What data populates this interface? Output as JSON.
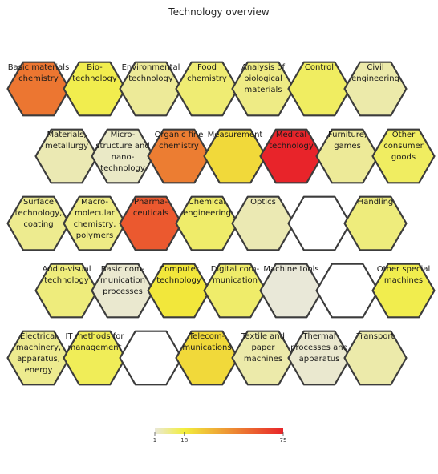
{
  "chart_data": {
    "type": "heatmap",
    "title": "Technology overview",
    "scale": {
      "min": 1,
      "mid": 18,
      "max": 75,
      "colors": [
        "#e9e8d8",
        "#f2ee3c",
        "#e8242a"
      ]
    },
    "legend_ticks": [
      "1",
      "18",
      "75"
    ],
    "cells": [
      {
        "row": 0,
        "col": 0,
        "label": [
          "Basic materials",
          "chemistry"
        ],
        "value": 52
      },
      {
        "row": 0,
        "col": 1,
        "label": [
          "Bio-",
          "technology"
        ],
        "value": 16
      },
      {
        "row": 0,
        "col": 2,
        "label": [
          "Environmental",
          "technology"
        ],
        "value": 8
      },
      {
        "row": 0,
        "col": 3,
        "label": [
          "Food",
          "chemistry"
        ],
        "value": 12
      },
      {
        "row": 0,
        "col": 4,
        "label": [
          "Analysis of",
          "biological",
          "materials"
        ],
        "value": 10
      },
      {
        "row": 0,
        "col": 5,
        "label": [
          "Control"
        ],
        "value": 14
      },
      {
        "row": 0,
        "col": 6,
        "label": [
          "Civil",
          "engineering"
        ],
        "value": 6
      },
      {
        "row": 1,
        "col": 0,
        "label": [
          "Materials,",
          "metallurgy"
        ],
        "value": 5
      },
      {
        "row": 1,
        "col": 1,
        "label": [
          "Micro-",
          "structure and",
          "nano-",
          "technology"
        ],
        "value": 3
      },
      {
        "row": 1,
        "col": 2,
        "label": [
          "Organic fine",
          "chemistry"
        ],
        "value": 50
      },
      {
        "row": 1,
        "col": 3,
        "label": [
          "Measurement"
        ],
        "value": 24
      },
      {
        "row": 1,
        "col": 4,
        "label": [
          "Medical",
          "technology"
        ],
        "value": 75
      },
      {
        "row": 1,
        "col": 5,
        "label": [
          "Furniture,",
          "games"
        ],
        "value": 8
      },
      {
        "row": 1,
        "col": 6,
        "label": [
          "Other",
          "consumer",
          "goods"
        ],
        "value": 14
      },
      {
        "row": 2,
        "col": 0,
        "label": [
          "Surface",
          "technology,",
          "coating"
        ],
        "value": 9
      },
      {
        "row": 2,
        "col": 1,
        "label": [
          "Macro-",
          "molecular",
          "chemistry,",
          "polymers"
        ],
        "value": 10
      },
      {
        "row": 2,
        "col": 2,
        "label": [
          "Pharma-",
          "ceuticals"
        ],
        "value": 60
      },
      {
        "row": 2,
        "col": 3,
        "label": [
          "Chemical",
          "engineering"
        ],
        "value": 13
      },
      {
        "row": 2,
        "col": 4,
        "label": [
          "Optics"
        ],
        "value": 5
      },
      {
        "row": 2,
        "col": 5,
        "label": [],
        "value": null
      },
      {
        "row": 2,
        "col": 6,
        "label": [
          "Handling"
        ],
        "value": 11
      },
      {
        "row": 3,
        "col": 0,
        "label": [
          "Audio-visual",
          "technology"
        ],
        "value": 11
      },
      {
        "row": 3,
        "col": 1,
        "label": [
          "Basic com-",
          "munication",
          "processes"
        ],
        "value": 2
      },
      {
        "row": 3,
        "col": 2,
        "label": [
          "Computer",
          "technology"
        ],
        "value": 20
      },
      {
        "row": 3,
        "col": 3,
        "label": [
          "Digital com-",
          "munication"
        ],
        "value": 13
      },
      {
        "row": 3,
        "col": 4,
        "label": [
          "Machine tools"
        ],
        "value": 1
      },
      {
        "row": 3,
        "col": 5,
        "label": [],
        "value": null
      },
      {
        "row": 3,
        "col": 6,
        "label": [
          "Other special",
          "machines"
        ],
        "value": 16
      },
      {
        "row": 4,
        "col": 0,
        "label": [
          "Electrical",
          "machinery,",
          "apparatus,",
          "energy"
        ],
        "value": 9
      },
      {
        "row": 4,
        "col": 1,
        "label": [
          "IT methods for",
          "management"
        ],
        "value": 15
      },
      {
        "row": 4,
        "col": 2,
        "label": [],
        "value": null
      },
      {
        "row": 4,
        "col": 3,
        "label": [
          "Telecom-",
          "munications"
        ],
        "value": 24
      },
      {
        "row": 4,
        "col": 4,
        "label": [
          "Textile and",
          "paper",
          "machines"
        ],
        "value": 6
      },
      {
        "row": 4,
        "col": 5,
        "label": [
          "Thermal",
          "processes and",
          "apparatus"
        ],
        "value": 2
      },
      {
        "row": 4,
        "col": 6,
        "label": [
          "Transport"
        ],
        "value": 6
      }
    ]
  }
}
